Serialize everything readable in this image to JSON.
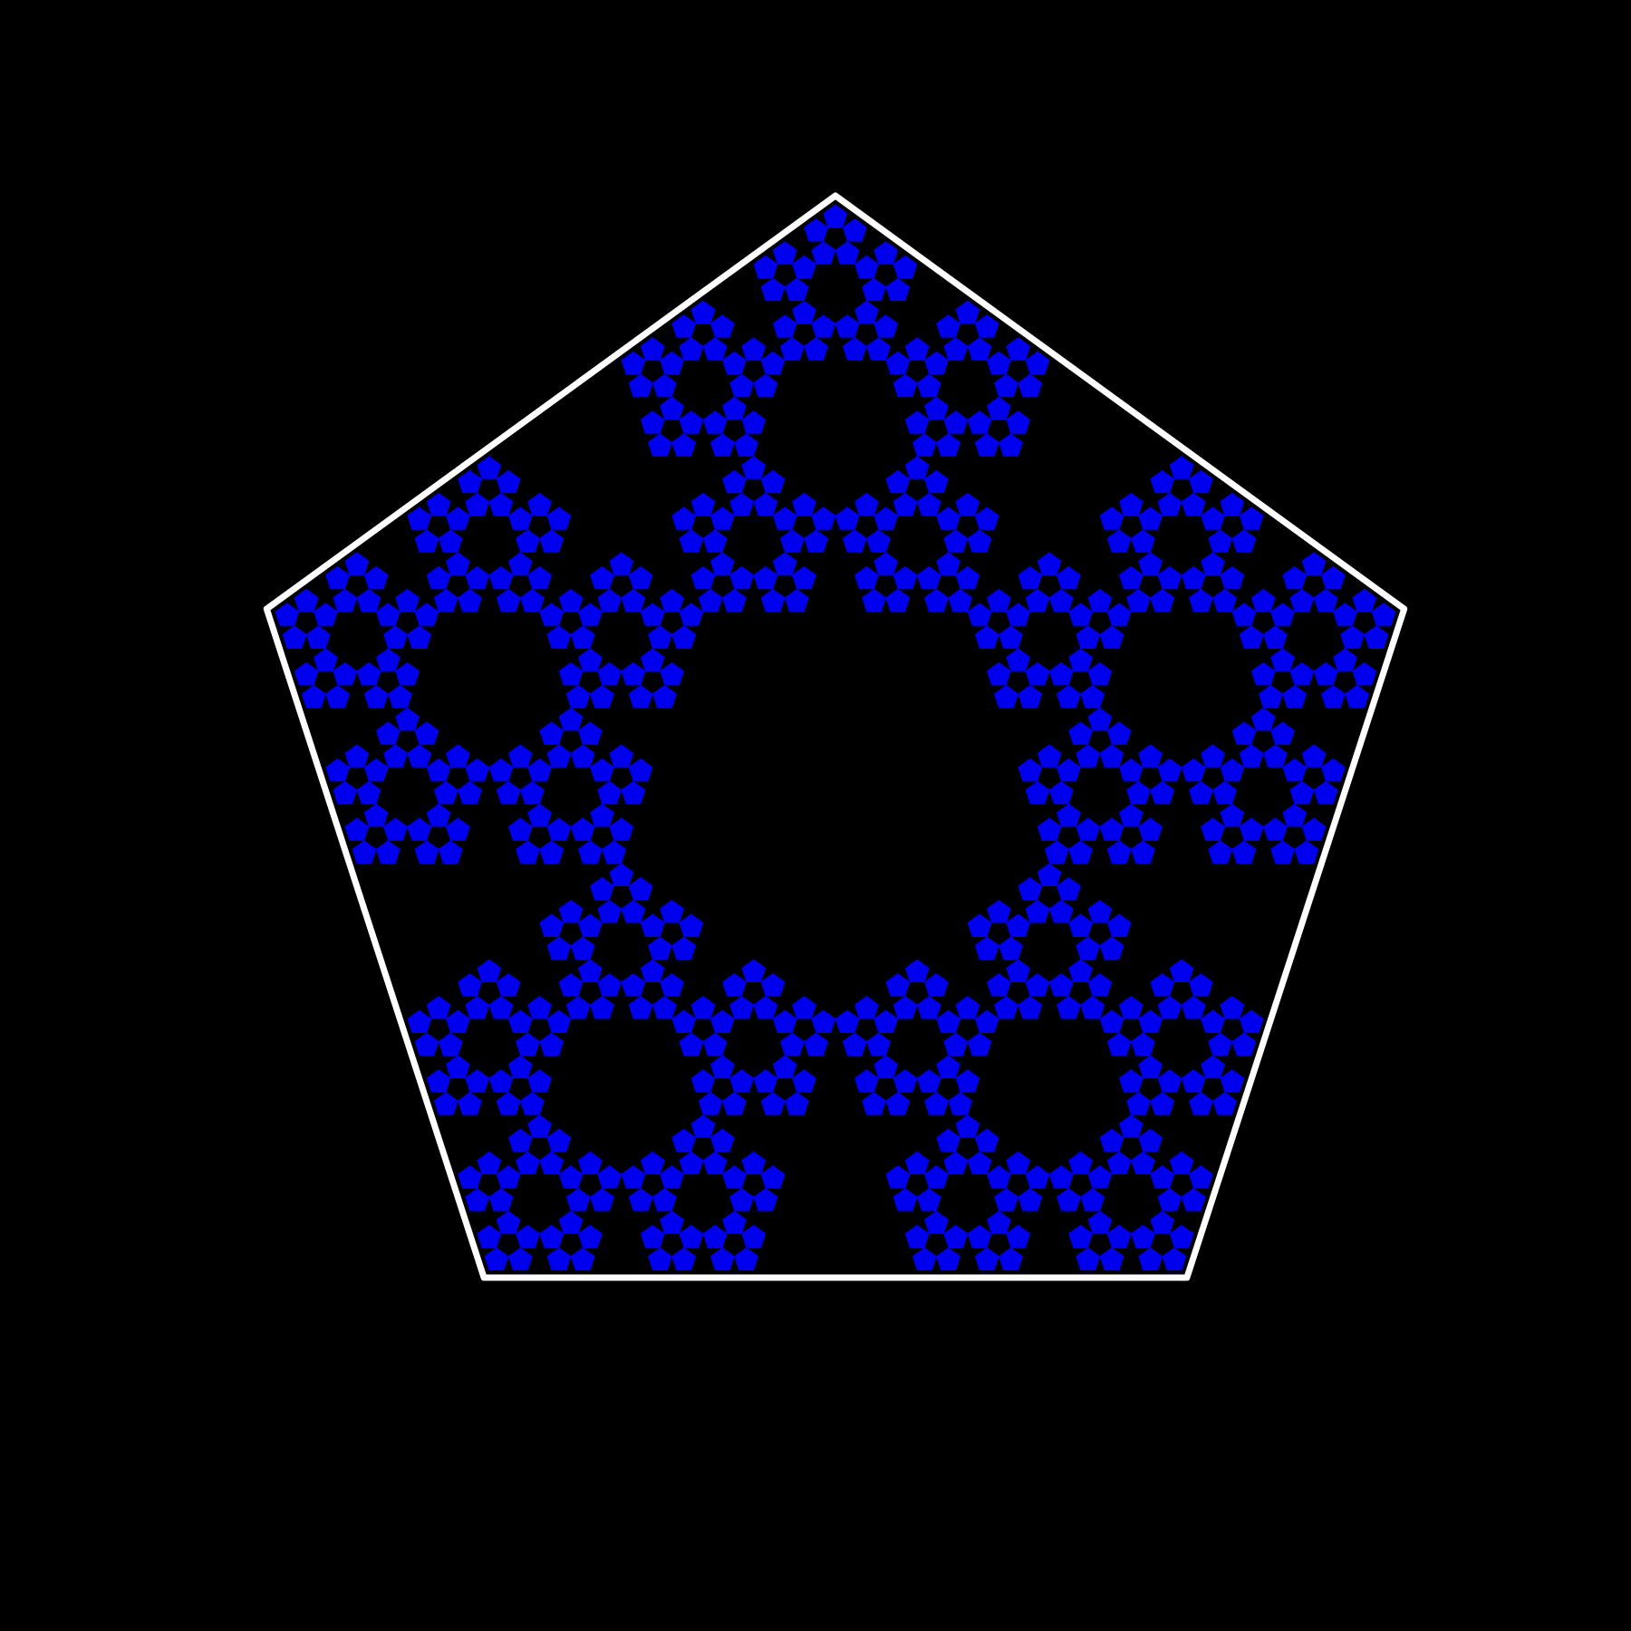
{
  "figure": {
    "subject": "pentaflake-fractal",
    "background_color": "#000000",
    "outline_color": "#ffffff",
    "fill_color": "#0000ee",
    "polygon_sides": 5,
    "fractal_depth": 4,
    "copies_per_level": 5
  }
}
